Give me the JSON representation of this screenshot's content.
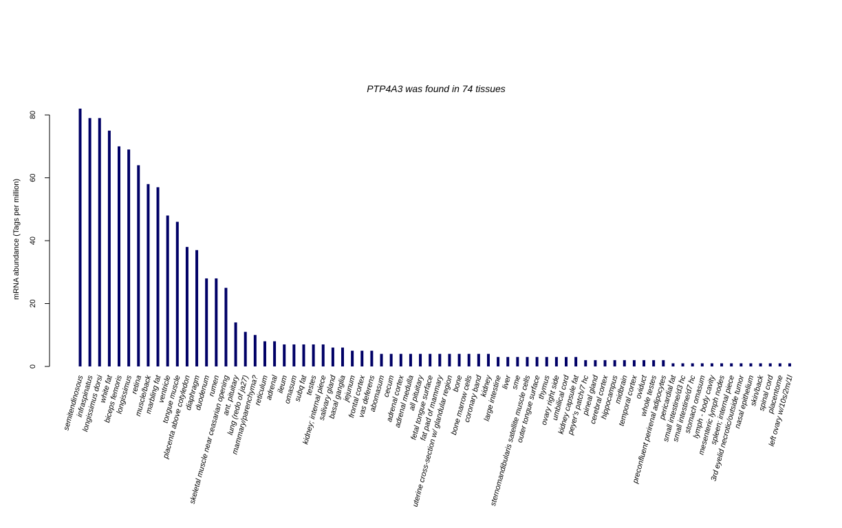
{
  "chart_data": {
    "type": "bar",
    "title": "PTP4A3  was found in  74  tissues",
    "xlabel": "",
    "ylabel": "mRNA abundance (Tags per million)",
    "ylim": [
      0,
      82
    ],
    "yticks": [
      0,
      20,
      40,
      60,
      80
    ],
    "grid": false,
    "bar_color": "#000066",
    "categories": [
      "semitendinosous",
      "infraspinatus",
      "longissimus dorsi",
      "white fat",
      "biceps femoris",
      "longissimus",
      "retina",
      "muscle/back",
      "marbling fat",
      "ventricle",
      "tongue muscle",
      "placenta above cotyledon",
      "diaphragm",
      "duodenum",
      "rumen",
      "skeletal muscle near ceasarian opening",
      "ant. pituitary",
      "lung (redo of ja27)",
      "mammary/parenchyma?",
      "reticulum",
      "adrenal",
      "ileum",
      "omasum",
      "subq fat",
      "testes",
      "kidney; internal piece",
      "salivary gland",
      "basal ganglia",
      "jejunum",
      "frontal cortex",
      "vas deferens",
      "abomasum",
      "cecum",
      "adrenal cortex",
      "adrenal medulla",
      "all pituitary",
      "fetal tongue surface",
      "fat pad of mammary",
      "uterine cross-section w/ glandular region",
      "bone",
      "bone marrow cells",
      "coronary band",
      "kidney",
      "large intestine",
      "liver",
      "sme",
      "sternomandibularis satellite muscle cells",
      "outer tongue surface",
      "thymus",
      "ovary right side",
      "umbilical cord",
      "kidney capsule fat",
      "peyer's patch/7 hc",
      "pineal gland",
      "cerebral cortex",
      "hippocampus",
      "midbrain",
      "temporal cortex",
      "oviduct",
      "whole testes",
      "preconfluent perirenal adipocytes",
      "pericardial fat",
      "small intestine/d3 hc",
      "small intestine/d7 hc",
      "stomach omasum",
      "lymph - body cavity",
      "mesenteric lymph nodes",
      "spleen; internal piece",
      "3rd eyelid necrotic/outside tumor",
      "nasal epithelium",
      "skin/back",
      "spinal cord",
      "placentome",
      "left ovary w/10s/2m/1l"
    ],
    "values": [
      82,
      79,
      79,
      75,
      70,
      69,
      64,
      58,
      57,
      48,
      46,
      38,
      37,
      28,
      28,
      25,
      14,
      11,
      10,
      8,
      8,
      7,
      7,
      7,
      7,
      7,
      6,
      6,
      5,
      5,
      5,
      4,
      4,
      4,
      4,
      4,
      4,
      4,
      4,
      4,
      4,
      4,
      4,
      3,
      3,
      3,
      3,
      3,
      3,
      3,
      3,
      3,
      2,
      2,
      2,
      2,
      2,
      2,
      2,
      2,
      2,
      1,
      1,
      1,
      1,
      1,
      1,
      1,
      1,
      1,
      1,
      1,
      1,
      1
    ]
  }
}
